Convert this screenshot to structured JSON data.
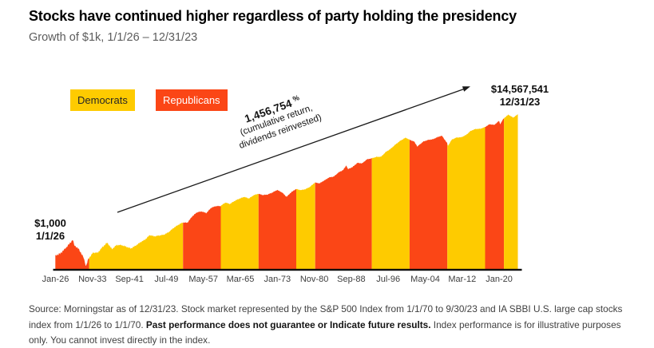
{
  "header": {
    "title": "Stocks have continued higher regardless of party holding the presidency",
    "subtitle": "Growth of $1k, 1/1/26 – 12/31/23"
  },
  "legend": {
    "democrats": "Democrats",
    "republicans": "Republicans"
  },
  "annotation": {
    "return_value": "1,456,754",
    "percent_sign": "%",
    "line2": "(cumulative return,",
    "line3": "dividends reinvested)"
  },
  "labels": {
    "start_value": "$1,000",
    "start_date": "1/1/26",
    "end_value": "$14,567,541",
    "end_date": "12/31/23"
  },
  "footer": {
    "source_prefix": "Source: Morningstar as of 12/31/23. Stock market represented by the S&P 500 Index from 1/1/70 to 9/30/23 and IA SBBI U.S. large cap stocks index from 1/1/26 to 1/1/70. ",
    "source_bold": "Past performance does not guarantee or Indicate future results.",
    "source_suffix": " Index performance is for illustrative purposes only. You cannot invest directly in the index."
  },
  "colors": {
    "democrat": "#FECB00",
    "republican": "#FB4616",
    "axis": "#0f0f0f",
    "arrow": "#1a1a1a"
  },
  "chart_data": {
    "type": "area",
    "title": "Growth of $1k, 1/1/26 – 12/31/23",
    "y_scale": "log",
    "grid": false,
    "x_range_years": [
      1926.0,
      2024.0
    ],
    "start": {
      "date": "1/1/26",
      "value": 1000
    },
    "end": {
      "date": "12/31/23",
      "value": 14567541
    },
    "cumulative_return_pct": 1456754,
    "x_ticks": [
      "Jan-26",
      "Nov-33",
      "Sep-41",
      "Jul-49",
      "May-57",
      "Mar-65",
      "Jan-73",
      "Nov-80",
      "Sep-88",
      "Jul-96",
      "May-04",
      "Mar-12",
      "Jan-20"
    ],
    "x_tick_interval_months": 94,
    "points_note": "anchor points [decimal_year, dollars]; value is growth of $1,000 with dividends reinvested, read off log-scale chart / year-end wealth index",
    "points": [
      [
        1926.0,
        1000
      ],
      [
        1927.0,
        1120
      ],
      [
        1928.0,
        1540
      ],
      [
        1929.0,
        2200
      ],
      [
        1929.7,
        2930
      ],
      [
        1930.0,
        2020
      ],
      [
        1931.0,
        1520
      ],
      [
        1932.0,
        860
      ],
      [
        1932.5,
        480
      ],
      [
        1933.0,
        790
      ],
      [
        1934.0,
        1210
      ],
      [
        1935.0,
        1200
      ],
      [
        1936.0,
        1770
      ],
      [
        1937.0,
        2370
      ],
      [
        1938.0,
        1540
      ],
      [
        1939.0,
        2020
      ],
      [
        1940.0,
        2010
      ],
      [
        1941.0,
        1810
      ],
      [
        1942.0,
        1600
      ],
      [
        1943.0,
        1930
      ],
      [
        1944.0,
        2430
      ],
      [
        1945.0,
        2910
      ],
      [
        1946.0,
        3970
      ],
      [
        1947.0,
        3650
      ],
      [
        1948.0,
        3850
      ],
      [
        1949.0,
        4070
      ],
      [
        1950.0,
        4830
      ],
      [
        1951.0,
        6360
      ],
      [
        1952.0,
        7890
      ],
      [
        1953.0,
        9340
      ],
      [
        1954.0,
        9240
      ],
      [
        1955.0,
        14110
      ],
      [
        1956.0,
        18560
      ],
      [
        1957.0,
        19780
      ],
      [
        1958.0,
        17660
      ],
      [
        1959.0,
        25300
      ],
      [
        1960.0,
        28320
      ],
      [
        1961.0,
        28460
      ],
      [
        1962.0,
        36110
      ],
      [
        1963.0,
        32950
      ],
      [
        1964.0,
        40470
      ],
      [
        1965.0,
        47140
      ],
      [
        1966.0,
        53010
      ],
      [
        1967.0,
        47670
      ],
      [
        1968.0,
        59100
      ],
      [
        1969.0,
        65640
      ],
      [
        1970.0,
        60060
      ],
      [
        1971.0,
        62470
      ],
      [
        1972.0,
        71410
      ],
      [
        1973.0,
        84960
      ],
      [
        1974.0,
        72500
      ],
      [
        1975.0,
        53310
      ],
      [
        1976.0,
        73140
      ],
      [
        1977.0,
        90580
      ],
      [
        1978.0,
        84080
      ],
      [
        1979.0,
        89590
      ],
      [
        1980.0,
        106110
      ],
      [
        1981.0,
        140510
      ],
      [
        1982.0,
        133620
      ],
      [
        1983.0,
        162220
      ],
      [
        1984.0,
        198750
      ],
      [
        1985.0,
        211200
      ],
      [
        1986.0,
        278330
      ],
      [
        1987.0,
        330270
      ],
      [
        1987.65,
        452000
      ],
      [
        1988.0,
        347970
      ],
      [
        1989.0,
        405550
      ],
      [
        1990.0,
        534460
      ],
      [
        1991.0,
        517500
      ],
      [
        1992.0,
        675590
      ],
      [
        1993.0,
        727380
      ],
      [
        1994.0,
        800080
      ],
      [
        1995.0,
        810540
      ],
      [
        1996.0,
        1113920
      ],
      [
        1997.0,
        1370950
      ],
      [
        1998.0,
        1828330
      ],
      [
        1999.0,
        2350890
      ],
      [
        2000.0,
        2845630
      ],
      [
        2000.25,
        2950000
      ],
      [
        2001.0,
        2586520
      ],
      [
        2002.0,
        2279130
      ],
      [
        2002.75,
        1600000
      ],
      [
        2003.0,
        1775340
      ],
      [
        2004.0,
        2285800
      ],
      [
        2005.0,
        2534560
      ],
      [
        2006.0,
        2658780
      ],
      [
        2007.0,
        3077330
      ],
      [
        2007.8,
        3360000
      ],
      [
        2008.0,
        3246390
      ],
      [
        2009.0,
        2049450
      ],
      [
        2009.2,
        1700000
      ],
      [
        2010.0,
        2592530
      ],
      [
        2011.0,
        2982240
      ],
      [
        2012.0,
        3045710
      ],
      [
        2013.0,
        3532060
      ],
      [
        2014.0,
        4677000
      ],
      [
        2015.0,
        5316850
      ],
      [
        2016.0,
        5390420
      ],
      [
        2017.0,
        6035330
      ],
      [
        2018.0,
        7353240
      ],
      [
        2019.0,
        7032100
      ],
      [
        2020.0,
        9244930
      ],
      [
        2020.25,
        7400000
      ],
      [
        2021.0,
        10946100
      ],
      [
        2022.0,
        14086550
      ],
      [
        2023.0,
        11533620
      ],
      [
        2024.0,
        14567541
      ]
    ],
    "party_bands": [
      {
        "party": "Republicans",
        "start": 1926.0,
        "end": 1933.17
      },
      {
        "party": "Democrats",
        "start": 1933.17,
        "end": 1953.055
      },
      {
        "party": "Republicans",
        "start": 1953.055,
        "end": 1961.055
      },
      {
        "party": "Democrats",
        "start": 1961.055,
        "end": 1969.055
      },
      {
        "party": "Republicans",
        "start": 1969.055,
        "end": 1977.055
      },
      {
        "party": "Democrats",
        "start": 1977.055,
        "end": 1981.055
      },
      {
        "party": "Republicans",
        "start": 1981.055,
        "end": 1993.055
      },
      {
        "party": "Democrats",
        "start": 1993.055,
        "end": 2001.055
      },
      {
        "party": "Republicans",
        "start": 2001.055,
        "end": 2009.055
      },
      {
        "party": "Democrats",
        "start": 2009.055,
        "end": 2017.055
      },
      {
        "party": "Republicans",
        "start": 2017.055,
        "end": 2021.055
      },
      {
        "party": "Democrats",
        "start": 2021.055,
        "end": 2024.0
      }
    ]
  }
}
